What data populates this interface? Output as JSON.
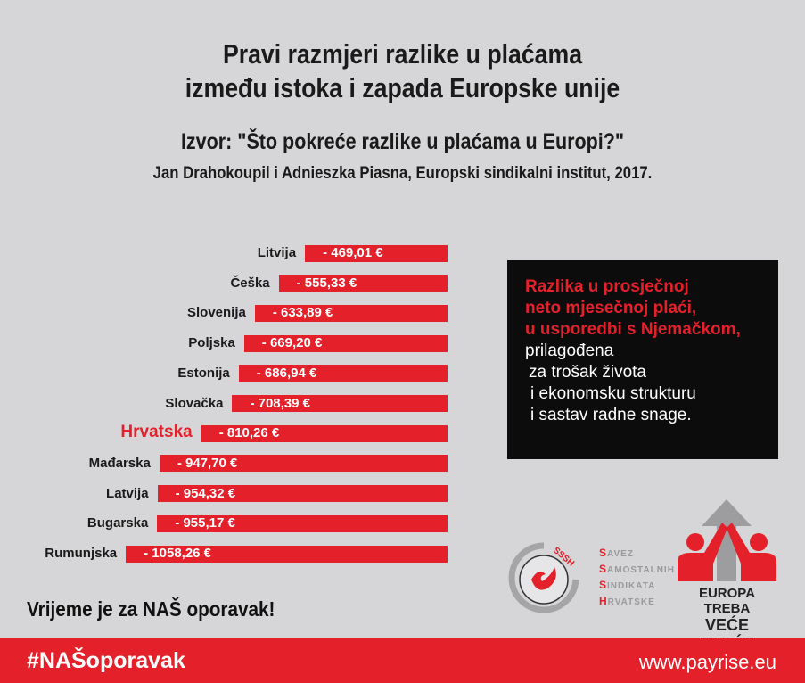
{
  "header": {
    "title_line1": "Pravi razmjeri razlike u plaćama",
    "title_line2": "između istoka i zapada Europske unije",
    "source_line1": "Izvor: \"Što pokreće razlike u plaćama u Europi?\"",
    "source_line2": "Jan Drahokoupil i Adnieszka Piasna, Europski sindikalni institut, 2017."
  },
  "chart_data": {
    "type": "bar",
    "orientation": "horizontal",
    "categories": [
      "Litvija",
      "Češka",
      "Slovenija",
      "Poljska",
      "Estonija",
      "Slovačka",
      "Hrvatska",
      "Mađarska",
      "Latvija",
      "Bugarska",
      "Rumunjska"
    ],
    "values": [
      -469.01,
      -555.33,
      -633.89,
      -669.2,
      -686.94,
      -708.39,
      -810.26,
      -947.7,
      -954.32,
      -955.17,
      -1058.26
    ],
    "data_labels": [
      "- 469,01 €",
      "- 555,33 €",
      "- 633,89 €",
      "- 669,20 €",
      "- 686,94 €",
      "- 708,39 €",
      "- 810,26 €",
      "- 947,70 €",
      "- 954,32 €",
      "- 955,17 €",
      "- 1058,26 €"
    ],
    "highlight": "Hrvatska",
    "unit": "€",
    "bar_color": "#e4202a",
    "highlight_label_color": "#e4202a"
  },
  "infobox": {
    "red_lines": [
      "Razlika u prosječnoj",
      "neto mjesečnoj plaći,",
      "u usporedbi s Njemačkom,"
    ],
    "white_lines": [
      "prilagođena",
      "za trošak života",
      "i ekonomsku strukturu",
      "i sastav radne snage."
    ]
  },
  "logos": {
    "sssh_badge": "SSSH",
    "sssh_lines": [
      [
        "S",
        "AVEZ"
      ],
      [
        "S",
        "AMOSTALNIH"
      ],
      [
        "S",
        "INDIKATA"
      ],
      [
        "H",
        "RVATSKE"
      ]
    ],
    "campaign_line1": "EUROPA TREBA",
    "campaign_line2": "VEĆE PLAĆE"
  },
  "slogan": "Vrijeme je za NAŠ oporavak!",
  "footer": {
    "hashtag": "#NAŠoporavak",
    "url": "www.payrise.eu"
  },
  "colors": {
    "brand_red": "#e4202a",
    "background": "#d6d6d8"
  }
}
